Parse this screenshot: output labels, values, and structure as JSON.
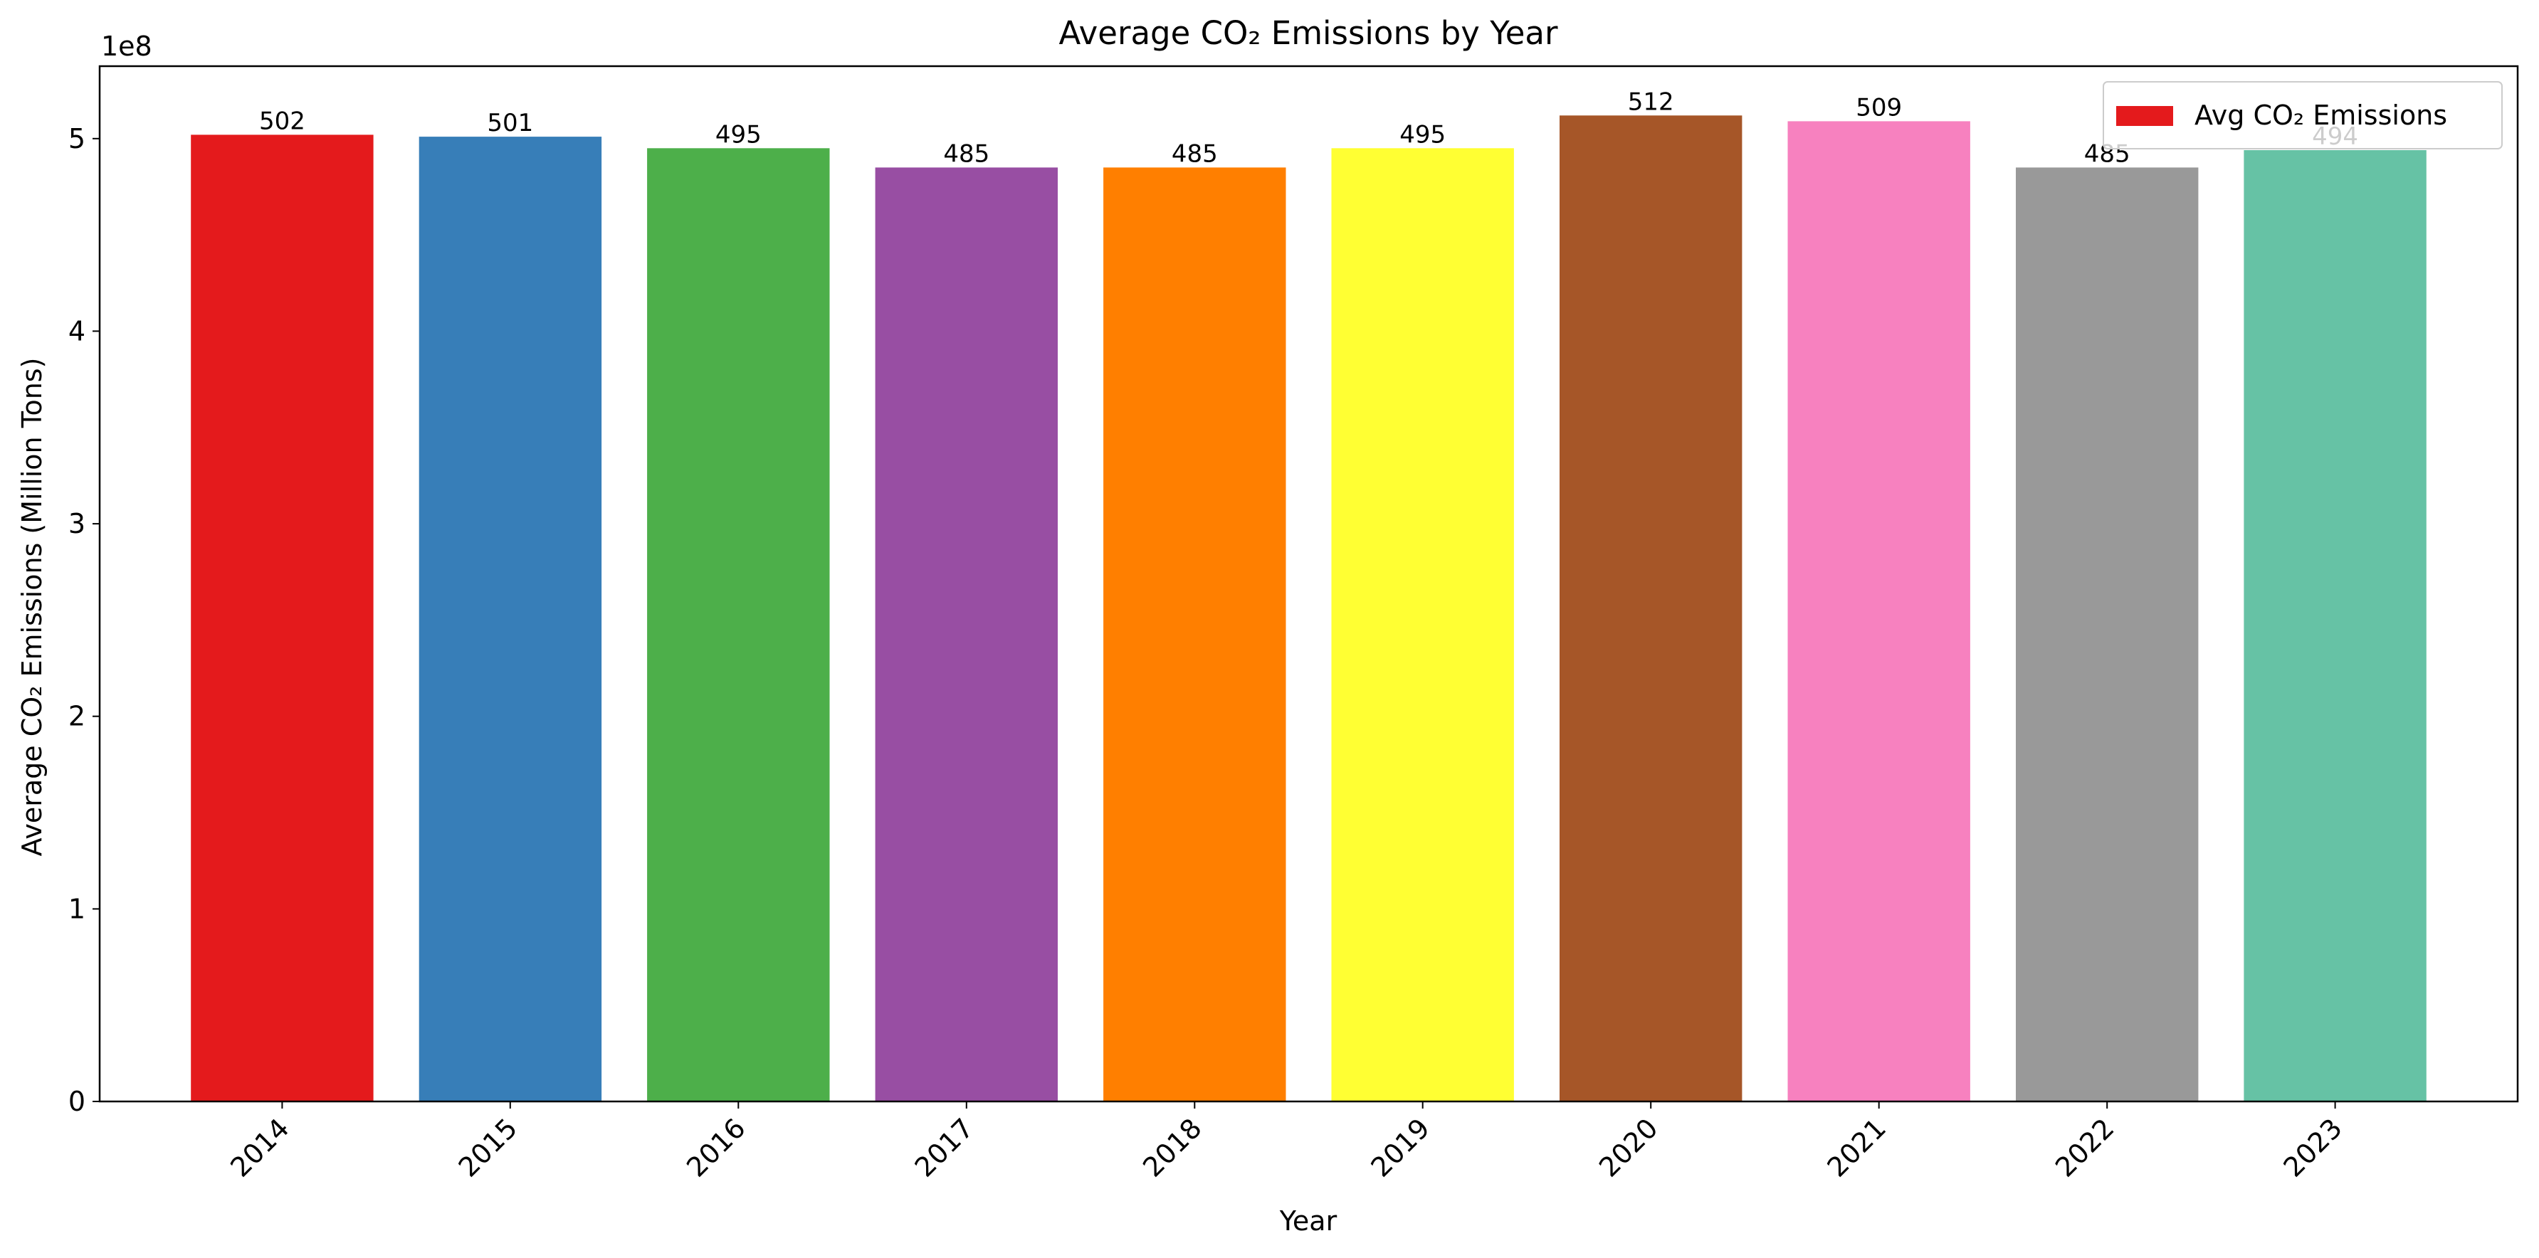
{
  "chart_data": {
    "type": "bar",
    "title": "Average CO₂ Emissions by Year",
    "xlabel": "Year",
    "ylabel": "Average CO₂ Emissions (Million Tons)",
    "offset_text": "1e8",
    "categories": [
      "2014",
      "2015",
      "2016",
      "2017",
      "2018",
      "2019",
      "2020",
      "2021",
      "2022",
      "2023"
    ],
    "series": [
      {
        "name": "Avg CO₂ Emissions",
        "values": [
          502000000,
          501000000,
          495000000,
          485000000,
          485000000,
          495000000,
          512000000,
          509000000,
          485000000,
          494000000
        ],
        "labels": [
          "502",
          "501",
          "495",
          "485",
          "485",
          "495",
          "512",
          "509",
          "485",
          "494"
        ]
      }
    ],
    "colors": [
      "#e41a1c",
      "#377eb8",
      "#4daf4a",
      "#984ea3",
      "#ff7f00",
      "#ffff33",
      "#a65628",
      "#f781bf",
      "#999999",
      "#66c2a5"
    ],
    "yticks": [
      0,
      100000000,
      200000000,
      300000000,
      400000000,
      500000000
    ],
    "ytick_labels": [
      "0",
      "1",
      "2",
      "3",
      "4",
      "5"
    ],
    "ylim": [
      0,
      537600000
    ],
    "legend": "upper right",
    "grid": false
  }
}
